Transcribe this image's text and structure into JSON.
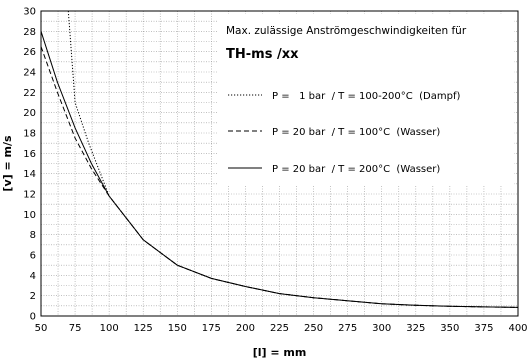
{
  "chart_data": {
    "type": "line",
    "title": "Max. zulässige Anströmgeschwindigkeiten für",
    "subtitle": "TH-ms /xx",
    "xlabel": "[l] = mm",
    "ylabel": "[v] = m/s",
    "xlim": [
      50,
      400
    ],
    "ylim": [
      0,
      30
    ],
    "x_ticks": [
      50,
      75,
      100,
      125,
      150,
      175,
      200,
      225,
      250,
      275,
      300,
      325,
      350,
      375,
      400
    ],
    "y_ticks": [
      0,
      2,
      4,
      6,
      8,
      10,
      12,
      14,
      16,
      18,
      20,
      22,
      24,
      26,
      28,
      30
    ],
    "grid": true,
    "legend_position": "top-right",
    "series": [
      {
        "name": "P =   1 bar  / T = 100-200°C  (Dampf)",
        "style": "dotted",
        "points": [
          [
            70,
            30
          ],
          [
            75,
            21
          ],
          [
            85,
            17
          ],
          [
            100,
            11.8
          ],
          [
            125,
            7.5
          ],
          [
            150,
            5.0
          ],
          [
            175,
            3.7
          ],
          [
            200,
            2.9
          ],
          [
            225,
            2.2
          ],
          [
            250,
            1.8
          ],
          [
            275,
            1.5
          ],
          [
            300,
            1.2
          ],
          [
            325,
            1.05
          ],
          [
            350,
            0.95
          ],
          [
            375,
            0.9
          ],
          [
            400,
            0.85
          ]
        ]
      },
      {
        "name": "P = 20 bar  / T = 100°C  (Wasser)",
        "style": "dashed",
        "points": [
          [
            50,
            26.5
          ],
          [
            62,
            22
          ],
          [
            75,
            17.5
          ],
          [
            87,
            14.5
          ],
          [
            100,
            11.8
          ],
          [
            125,
            7.5
          ],
          [
            150,
            5.0
          ],
          [
            175,
            3.7
          ],
          [
            200,
            2.9
          ],
          [
            225,
            2.2
          ],
          [
            250,
            1.8
          ],
          [
            275,
            1.5
          ],
          [
            300,
            1.2
          ],
          [
            325,
            1.05
          ],
          [
            350,
            0.95
          ],
          [
            375,
            0.9
          ],
          [
            400,
            0.85
          ]
        ]
      },
      {
        "name": "P = 20 bar  / T = 200°C  (Wasser)",
        "style": "solid",
        "points": [
          [
            50,
            28
          ],
          [
            62,
            23
          ],
          [
            75,
            18.5
          ],
          [
            87,
            15
          ],
          [
            100,
            11.8
          ],
          [
            125,
            7.5
          ],
          [
            150,
            5.0
          ],
          [
            175,
            3.7
          ],
          [
            200,
            2.9
          ],
          [
            225,
            2.2
          ],
          [
            250,
            1.8
          ],
          [
            275,
            1.5
          ],
          [
            300,
            1.2
          ],
          [
            325,
            1.05
          ],
          [
            350,
            0.95
          ],
          [
            375,
            0.9
          ],
          [
            400,
            0.85
          ]
        ]
      }
    ]
  }
}
